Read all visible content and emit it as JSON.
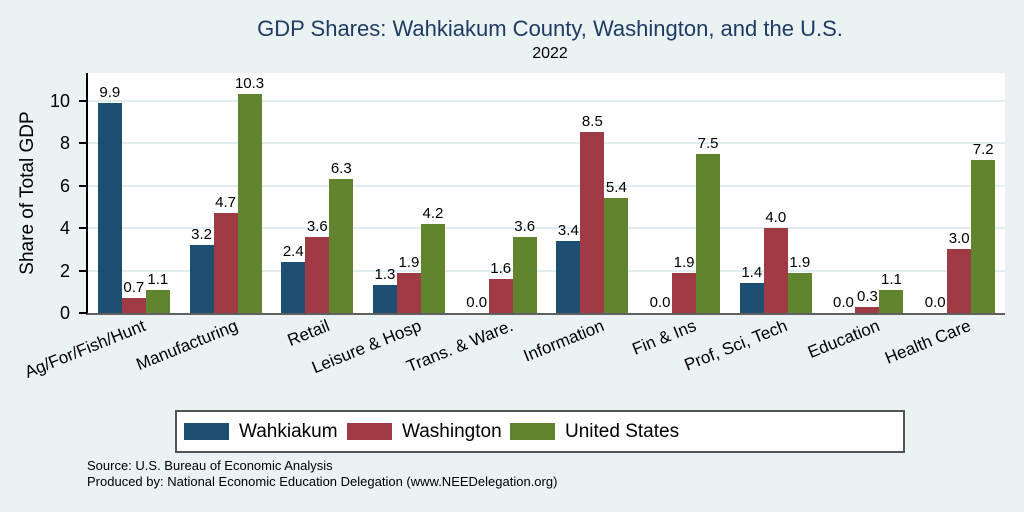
{
  "chart_data": {
    "type": "bar",
    "title": "GDP Shares: Wahkiakum County, Washington, and the U.S.",
    "subtitle": "2022",
    "ylabel": "Share of Total GDP",
    "xlabel": "",
    "categories": [
      "Ag/For/Fish/Hunt",
      "Manufacturing",
      "Retail",
      "Leisure & Hosp",
      "Trans. & Ware.",
      "Information",
      "Fin & Ins",
      "Prof, Sci, Tech",
      "Education",
      "Health Care"
    ],
    "series": [
      {
        "name": "Wahkiakum",
        "color": "#1d4f73",
        "values": [
          9.9,
          3.2,
          2.4,
          1.3,
          0.0,
          3.4,
          0.0,
          1.4,
          0.0,
          0.0
        ]
      },
      {
        "name": "Washington",
        "color": "#9e3b44",
        "values": [
          0.7,
          4.7,
          3.6,
          1.9,
          1.6,
          8.5,
          1.9,
          4.0,
          0.3,
          3.0
        ]
      },
      {
        "name": "United States",
        "color": "#61842f",
        "values": [
          1.1,
          10.3,
          6.3,
          4.2,
          3.6,
          5.4,
          7.5,
          1.9,
          1.1,
          7.2
        ]
      }
    ],
    "yticks": [
      0,
      2,
      4,
      6,
      8,
      10
    ],
    "ylim": [
      0,
      11.3
    ],
    "grid": true,
    "legend_position": "bottom",
    "value_labels": "one decimal place above each bar",
    "xlabel_angle_deg": 22
  },
  "footer": {
    "line1": "Source: U.S. Bureau of Economic Analysis",
    "line2": "Produced by: National Economic Education Delegation (www.NEEDelegation.org)"
  },
  "colors": {
    "page_background": "#eaf2f3",
    "plot_background": "#ffffff",
    "gridline": "#e1edf0",
    "title_text": "#1e3b63",
    "y_axis_line": "#000000",
    "x_axis_line": "#606060",
    "legend_border": "#545454"
  }
}
